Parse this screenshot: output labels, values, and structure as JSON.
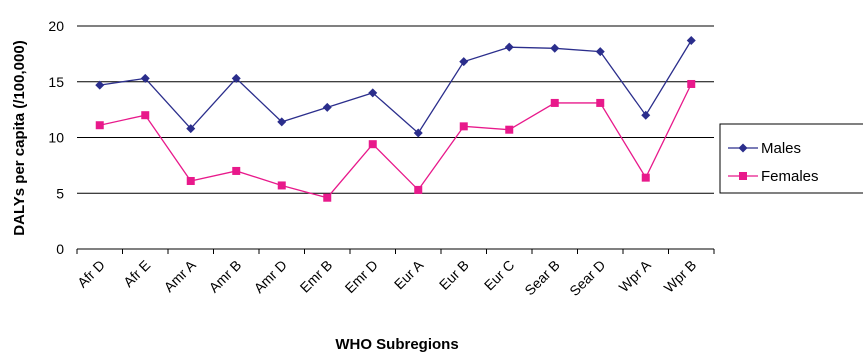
{
  "chart_data": {
    "type": "line",
    "title": "",
    "xlabel": "WHO Subregions",
    "ylabel": "DALYs per capita (/100,000)",
    "ylim": [
      0,
      20
    ],
    "yticks": [
      "0",
      "5",
      "10",
      "15",
      "20"
    ],
    "categories": [
      "Afr D",
      "Afr E",
      "Amr A",
      "Amr B",
      "Amr D",
      "Emr B",
      "Emr D",
      "Eur A",
      "Eur B",
      "Eur C",
      "Sear B",
      "Sear D",
      "Wpr A",
      "Wpr B"
    ],
    "series": [
      {
        "name": "Males",
        "color": "#2B2E8C",
        "marker": "diamond",
        "values": [
          14.7,
          15.3,
          10.8,
          15.3,
          11.4,
          12.7,
          14.0,
          10.4,
          16.8,
          18.1,
          18.0,
          17.7,
          12.0,
          18.7
        ]
      },
      {
        "name": "Females",
        "color": "#E8198B",
        "marker": "square",
        "values": [
          11.1,
          12.0,
          6.1,
          7.0,
          5.7,
          4.6,
          9.4,
          5.3,
          11.0,
          10.7,
          13.1,
          13.1,
          6.4,
          14.8
        ]
      }
    ],
    "grid": "horizontal",
    "legend_position": "right"
  }
}
